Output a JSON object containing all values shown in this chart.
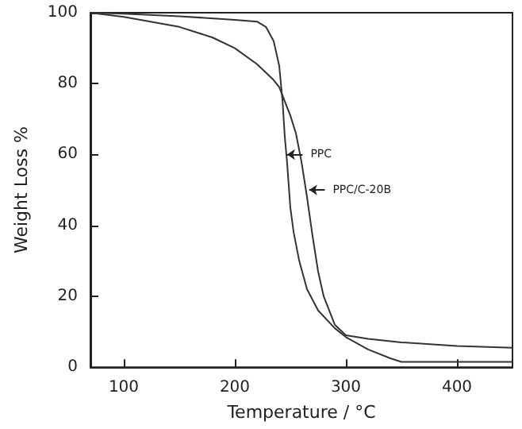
{
  "chart_data": {
    "type": "line",
    "xlabel": "Temperature / °C",
    "ylabel": "Weight Loss %",
    "xlim": [
      70,
      450
    ],
    "xticks": [
      100,
      200,
      300,
      400
    ],
    "ylim": [
      0,
      100
    ],
    "yticks": [
      0,
      20,
      40,
      60,
      80,
      100
    ],
    "grid": false,
    "marker": "none",
    "line_style": "solid",
    "series": [
      {
        "color": "#333333",
        "x": [
          70,
          100,
          150,
          200,
          220,
          228,
          235,
          240,
          243,
          245,
          247,
          250,
          253,
          258,
          265,
          275,
          290,
          300,
          320,
          340,
          350,
          400,
          450
        ],
        "values": [
          100,
          99.7,
          99,
          98,
          97.5,
          96,
          92,
          85,
          75,
          65,
          58,
          45,
          38,
          30,
          22,
          16,
          11,
          8.5,
          5,
          2.5,
          1.5,
          1.5,
          1.5
        ]
      },
      {
        "color": "#333333",
        "x": [
          70,
          100,
          150,
          180,
          200,
          220,
          235,
          240,
          245,
          250,
          255,
          260,
          265,
          270,
          275,
          280,
          290,
          300,
          320,
          350,
          400,
          450
        ],
        "values": [
          100,
          98.8,
          96,
          93,
          90,
          85.5,
          81,
          79,
          75,
          71,
          66,
          58,
          48,
          37,
          27,
          20,
          12,
          9,
          8,
          7,
          6,
          5.5
        ]
      }
    ],
    "annotations": [
      {
        "text": "PPC",
        "x": 247,
        "y": 60
      },
      {
        "text": "PPC/C-20B",
        "x": 267,
        "y": 50
      }
    ]
  }
}
